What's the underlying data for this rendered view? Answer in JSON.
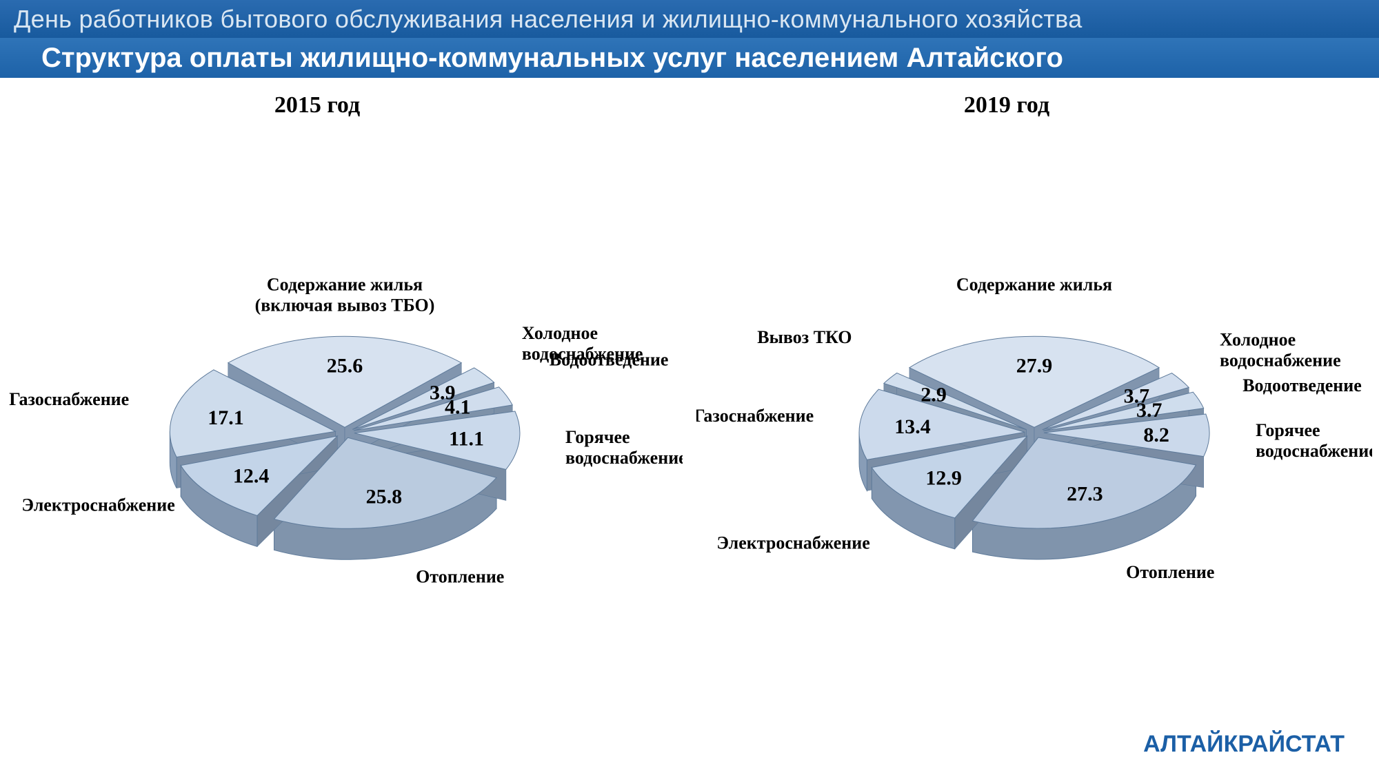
{
  "top_banner": "День работников бытового обслуживания населения и жилищно-коммунального хозяйства",
  "subtitle": "Структура оплаты жилищно-коммунальных услуг населением Алтайского",
  "footer_brand": "АЛТАЙКРАЙСТАТ",
  "pie_style": {
    "radius": 240,
    "depth": 45,
    "tilt": 0.55,
    "explode": 14,
    "gap_deg": 2.5,
    "base_color_light": "#e4ecf6",
    "base_color_mid": "#c2d3e8",
    "base_color_dark": "#9fb8d6",
    "edge_color": "#7e98b8",
    "stroke": "#5e7a9a",
    "stroke_width": 1,
    "label_fontsize": 26,
    "value_fontsize": 30,
    "title_fontsize": 34
  },
  "charts": [
    {
      "title": "2015 год",
      "slices": [
        {
          "label": "Содержание жилья\n(включая вывоз ТБО)",
          "value": 25.6
        },
        {
          "label": "Холодное\nводоснабжение",
          "value": 3.9
        },
        {
          "label": "Водоотведение",
          "value": 4.1
        },
        {
          "label": "Горячее\nводоснабжение",
          "value": 11.1
        },
        {
          "label": "Отопление",
          "value": 25.8
        },
        {
          "label": "Электроснабжение",
          "value": 12.4
        },
        {
          "label": "Газоснабжение",
          "value": 17.1
        }
      ]
    },
    {
      "title": "2019 год",
      "slices": [
        {
          "label": "Содержание жилья",
          "value": 27.9
        },
        {
          "label": "Холодное\nводоснабжение",
          "value": 3.7
        },
        {
          "label": "Водоотведение",
          "value": 3.7
        },
        {
          "label": "Горячее\nводоснабжение",
          "value": 8.2
        },
        {
          "label": "Отопление",
          "value": 27.3
        },
        {
          "label": "Электроснабжение",
          "value": 12.9
        },
        {
          "label": "Газоснабжение",
          "value": 13.4
        },
        {
          "label": "Вывоз ТКО",
          "value": 2.9
        }
      ]
    }
  ]
}
